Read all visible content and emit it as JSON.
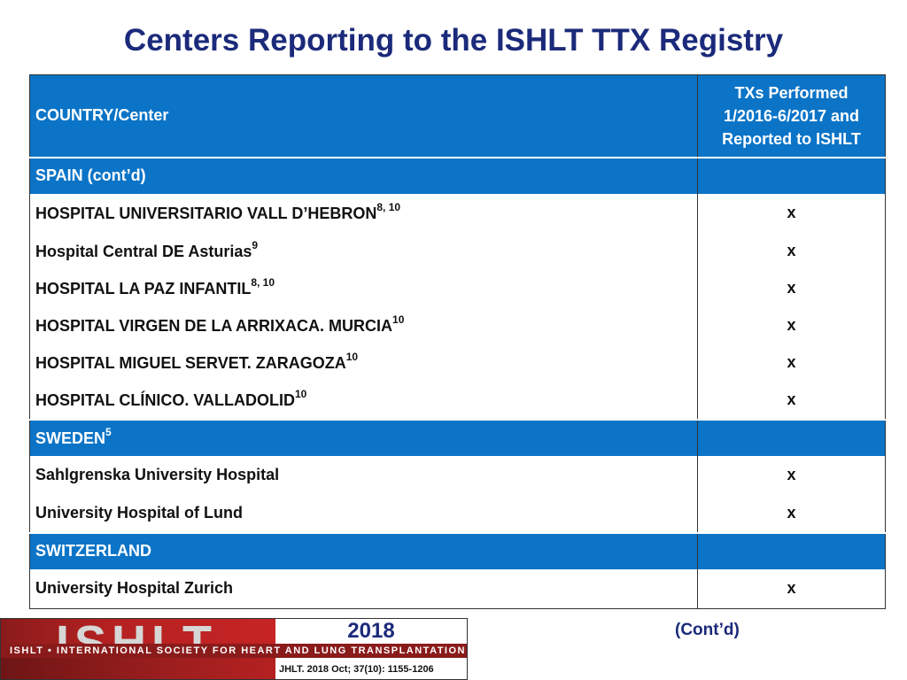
{
  "title": "Centers Reporting to the ISHLT TTX Registry",
  "table": {
    "header": {
      "col1": "COUNTRY/Center",
      "col2_lines": [
        "TXs Performed",
        "1/2016-6/2017 and",
        "Reported to ISHLT"
      ]
    },
    "sections": [
      {
        "country": "SPAIN (cont’d)",
        "sup": "",
        "centers": [
          {
            "name": "HOSPITAL UNIVERSITARIO VALL D’HEBRON",
            "sup": "8, 10",
            "mark": "x"
          },
          {
            "name": "Hospital Central DE Asturias",
            "sup": "9",
            "mark": "x"
          },
          {
            "name": "HOSPITAL LA PAZ INFANTIL",
            "sup": "8, 10",
            "mark": "x"
          },
          {
            "name": "HOSPITAL VIRGEN DE LA ARRIXACA. MURCIA",
            "sup": "10",
            "mark": "x"
          },
          {
            "name": "HOSPITAL MIGUEL SERVET. ZARAGOZA",
            "sup": "10",
            "mark": "x"
          },
          {
            "name": "HOSPITAL CLÍNICO. VALLADOLID",
            "sup": "10",
            "mark": "x"
          }
        ]
      },
      {
        "country": "SWEDEN",
        "sup": "5",
        "centers": [
          {
            "name": "Sahlgrenska University Hospital",
            "sup": "",
            "mark": "x"
          },
          {
            "name": "University Hospital of Lund",
            "sup": "",
            "mark": "x"
          }
        ]
      },
      {
        "country": "SWITZERLAND",
        "sup": "",
        "centers": [
          {
            "name": "University Hospital Zurich",
            "sup": "",
            "mark": "x"
          }
        ]
      }
    ]
  },
  "footer": {
    "logo_text": "ISHLT",
    "society": "ISHLT • INTERNATIONAL SOCIETY FOR HEART AND LUNG TRANSPLANTATION",
    "year": "2018",
    "citation": "JHLT. 2018 Oct; 37(10): 1155-1206"
  },
  "contd": "(Cont’d)",
  "colors": {
    "title": "#1b2a7a",
    "header_blue": "#0b74c7",
    "logo_red": "#b52121"
  }
}
